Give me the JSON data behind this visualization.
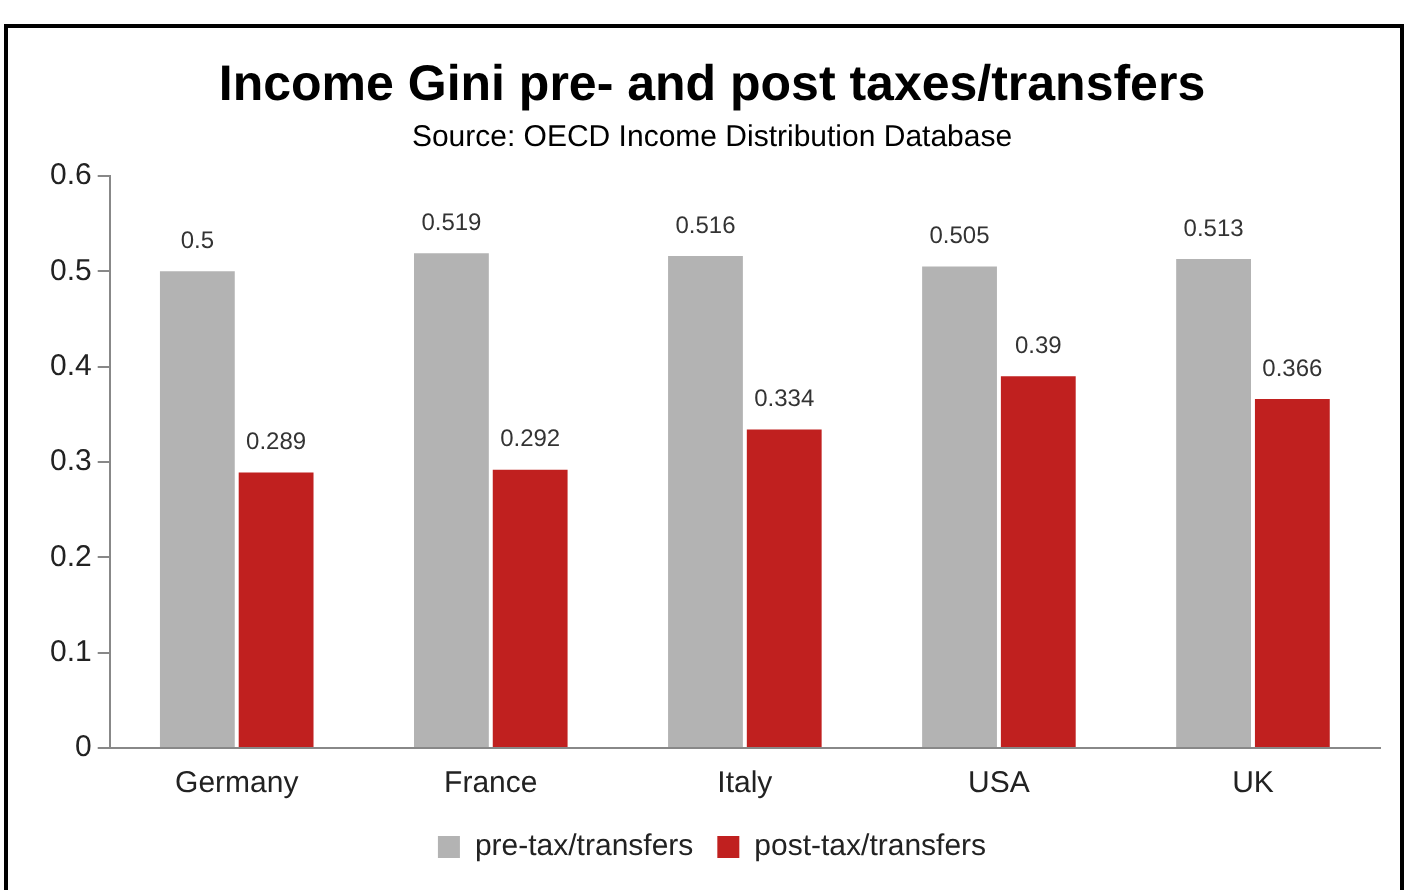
{
  "chart_data": {
    "type": "bar",
    "title": "Income Gini pre- and post taxes/transfers",
    "subtitle": "Source: OECD Income Distribution Database",
    "categories": [
      "Germany",
      "France",
      "Italy",
      "USA",
      "UK"
    ],
    "series": [
      {
        "name": "pre-tax/transfers",
        "color": "#b3b3b3",
        "values": [
          0.5,
          0.519,
          0.516,
          0.505,
          0.513
        ]
      },
      {
        "name": "post-tax/transfers",
        "color": "#c0201f",
        "values": [
          0.289,
          0.292,
          0.334,
          0.39,
          0.366
        ]
      }
    ],
    "ylim": [
      0,
      0.6
    ],
    "yticks": [
      0,
      0.1,
      0.2,
      0.3,
      0.4,
      0.5,
      0.6
    ],
    "grid": false,
    "legend": "bottom",
    "data_labels": true
  }
}
